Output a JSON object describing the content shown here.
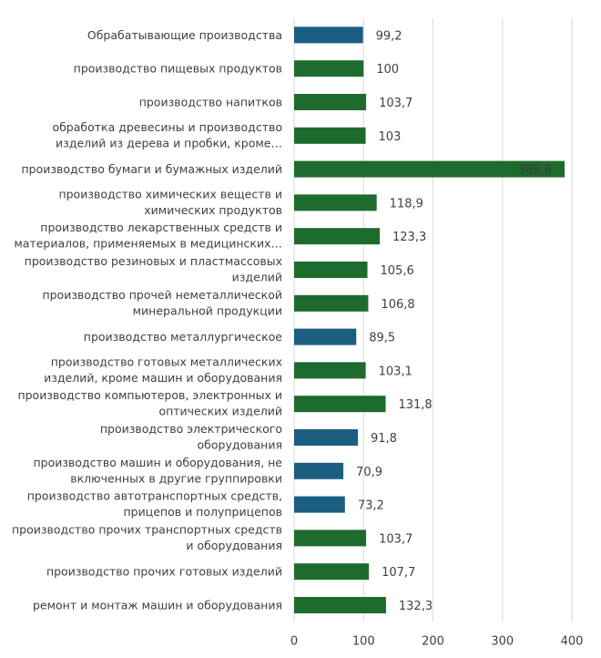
{
  "chart_data": {
    "type": "bar",
    "orientation": "horizontal",
    "title": "",
    "xlabel": "",
    "ylabel": "",
    "xlim": [
      0,
      400
    ],
    "x_ticks": [
      "0",
      "100",
      "200",
      "300",
      "400"
    ],
    "grid": true,
    "legend": "none",
    "colors": {
      "above": "#1e6b2e",
      "below": "#1b5e82"
    },
    "categories": [
      "Обрабатывающие производства",
      "производство пищевых продуктов",
      "производство напитков",
      "обработка древесины и производство изделий из дерева и пробки, кроме…",
      "производство бумаги и бумажных изделий",
      "производство химических веществ и химических продуктов",
      "производство лекарственных средств и материалов, применяемых в медицинских…",
      "производство резиновых и пластмассовых изделий",
      "производство прочей неметаллической минеральной продукции",
      "производство металлургическое",
      "производство готовых металлических изделий, кроме машин и оборудования",
      "производство компьютеров, электронных и оптических изделий",
      "производство электрического оборудования",
      "производство машин и оборудования, не включенных в другие группировки",
      "производство автотранспортных средств, прицепов и полуприцепов",
      "производство прочих транспортных средств и оборудования",
      "производство прочих готовых изделий",
      "ремонт и монтаж машин и оборудования"
    ],
    "values": [
      99.2,
      100,
      103.7,
      103,
      389.6,
      118.9,
      123.3,
      105.6,
      106.8,
      89.5,
      103.1,
      131.8,
      91.8,
      70.9,
      73.2,
      103.7,
      107.7,
      132.3
    ],
    "value_labels": [
      "99,2",
      "100",
      "103,7",
      "103",
      "389,6",
      "118,9",
      "123,3",
      "105,6",
      "106,8",
      "89,5",
      "103,1",
      "131,8",
      "91,8",
      "70,9",
      "73,2",
      "103,7",
      "107,7",
      "132,3"
    ],
    "label_lines": [
      [
        "Обрабатывающие производства"
      ],
      [
        "производство пищевых продуктов"
      ],
      [
        "производство напитков"
      ],
      [
        "обработка древесины и производство",
        "изделий из дерева и пробки, кроме…"
      ],
      [
        "производство бумаги и бумажных изделий"
      ],
      [
        "производство химических веществ и",
        "химических продуктов"
      ],
      [
        "производство лекарственных средств и",
        "материалов, применяемых в медицинских…"
      ],
      [
        "производство резиновых и пластмассовых",
        "изделий"
      ],
      [
        "производство прочей неметаллической",
        "минеральной продукции"
      ],
      [
        "производство металлургическое"
      ],
      [
        "производство готовых металлических",
        "изделий, кроме машин и оборудования"
      ],
      [
        "производство компьютеров, электронных и",
        "оптических изделий"
      ],
      [
        "производство электрического",
        "оборудования"
      ],
      [
        "производство машин и оборудования, не",
        "включенных в другие группировки"
      ],
      [
        "производство автотранспортных средств,",
        "прицепов и полуприцепов"
      ],
      [
        "производство прочих транспортных средств",
        "и оборудования"
      ],
      [
        "производство прочих готовых изделий"
      ],
      [
        "ремонт и монтаж машин и оборудования"
      ]
    ]
  }
}
